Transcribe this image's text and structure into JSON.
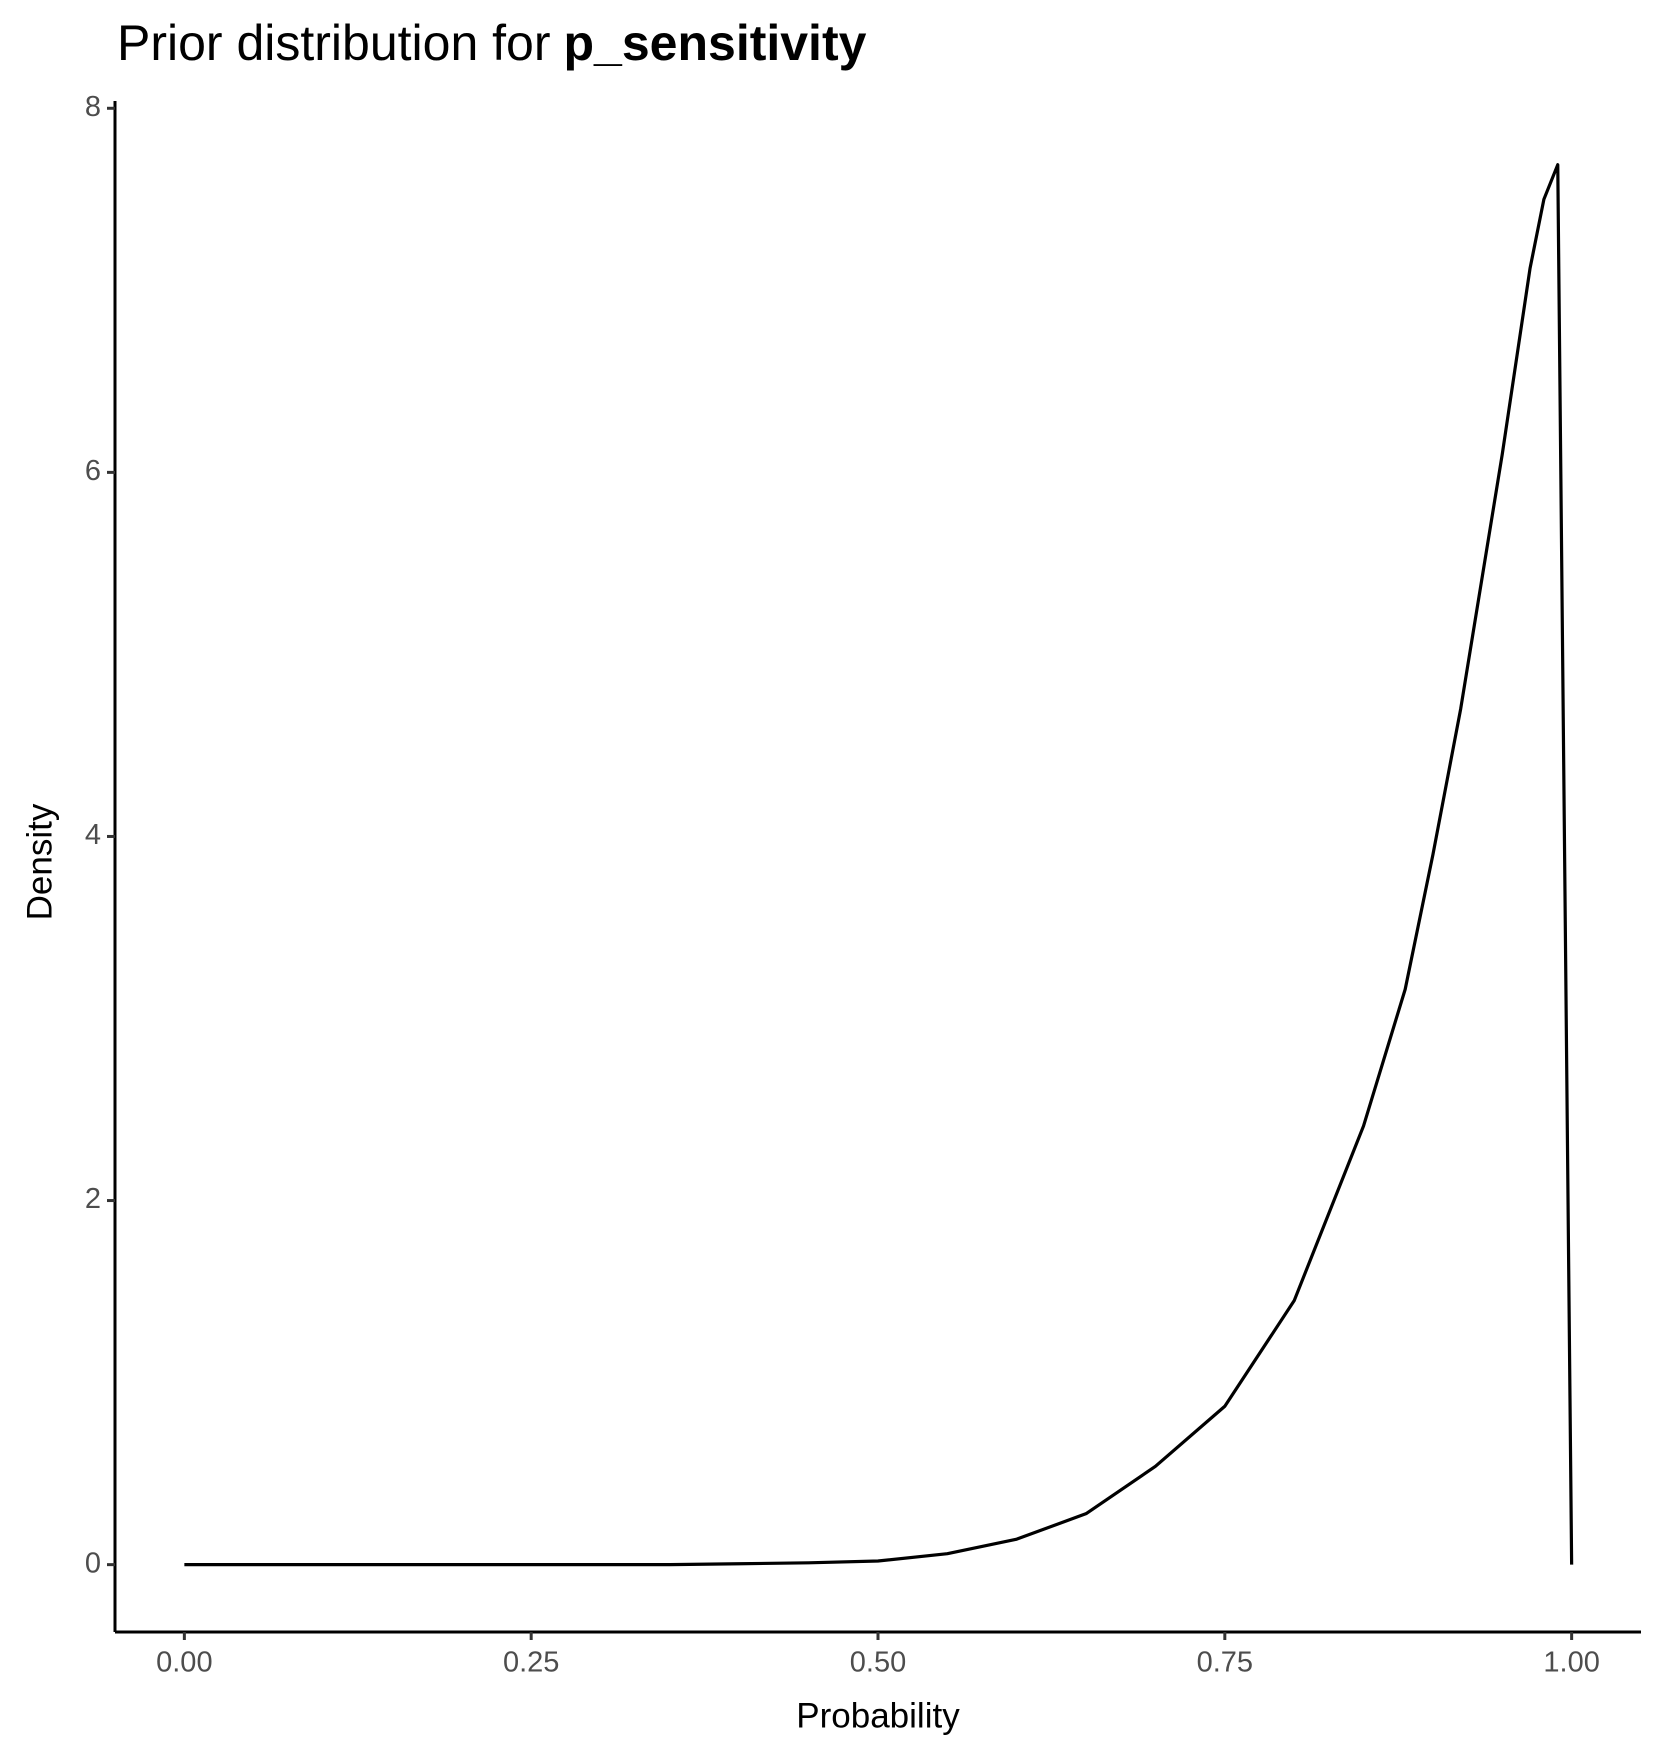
{
  "chart_data": {
    "type": "line",
    "title": {
      "text": "Prior distribution for",
      "bold": "p_sensitivity"
    },
    "x_label": "Probability",
    "y_label": "Density",
    "x": [
      0,
      0.05,
      0.1,
      0.15,
      0.2,
      0.25,
      0.3,
      0.35,
      0.4,
      0.45,
      0.5,
      0.55,
      0.6,
      0.65,
      0.7,
      0.75,
      0.8,
      0.85,
      0.88,
      0.9,
      0.92,
      0.95,
      0.97,
      0.98,
      0.99,
      1.0
    ],
    "series": [
      {
        "name": "density",
        "color": "#000000",
        "values": [
          0,
          0,
          0,
          0,
          0,
          0,
          0,
          0,
          0.005,
          0.01,
          0.02,
          0.06,
          0.14,
          0.28,
          0.54,
          0.87,
          1.45,
          2.41,
          3.16,
          3.9,
          4.7,
          6.1,
          7.12,
          7.5,
          7.69,
          0
        ]
      }
    ],
    "xlim": [
      -0.05,
      1.05
    ],
    "ylim": [
      -0.37,
      8.04
    ],
    "xticks": [
      {
        "value": 0,
        "label": "0.00"
      },
      {
        "value": 0.25,
        "label": "0.25"
      },
      {
        "value": 0.5,
        "label": "0.50"
      },
      {
        "value": 0.75,
        "label": "0.75"
      },
      {
        "value": 1,
        "label": "1.00"
      }
    ],
    "yticks": [
      0,
      2,
      4,
      6,
      8
    ],
    "grid": false
  }
}
